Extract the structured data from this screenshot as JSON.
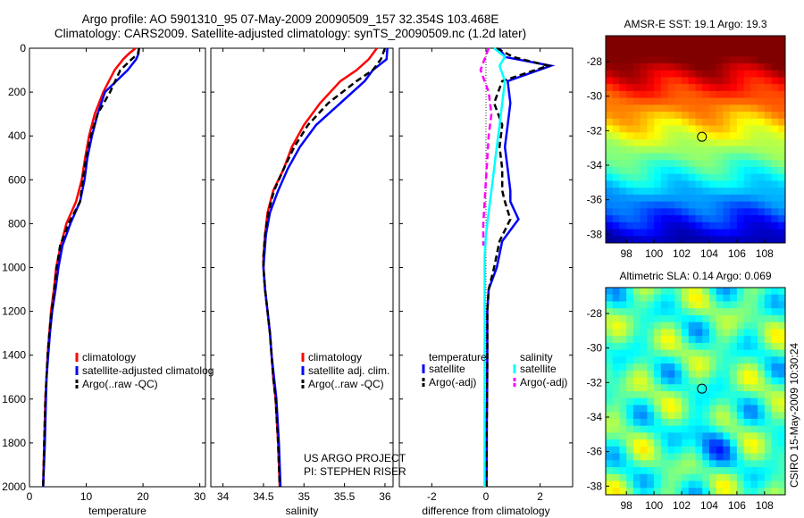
{
  "titles": {
    "line1": "Argo profile: AO 5901310_95 07-May-2009 20090509_157 32.354S 103.468E",
    "line2": "Climatology: CARS2009. Satellite-adjusted climatology: synTS_20090509.nc (1.2d later)"
  },
  "colors": {
    "climatology": "#ff0000",
    "satellite": "#0000ff",
    "argo": "#000000",
    "sal_satellite": "#00ffff",
    "sal_argo": "#ff00ff"
  },
  "depth_axis": {
    "ylim": [
      0,
      2000
    ],
    "ticks": [
      "0",
      "200",
      "400",
      "600",
      "800",
      "1000",
      "1200",
      "1400",
      "1600",
      "1800",
      "2000"
    ]
  },
  "chart_data": [
    {
      "type": "line",
      "xlabel": "temperature",
      "xlim": [
        0,
        31
      ],
      "xticks": [
        "0",
        "10",
        "20",
        "30"
      ],
      "y_reversed": true,
      "legend": [
        "climatology",
        "satellite-adjusted climatolog",
        "Argo(..raw -QC)"
      ],
      "series": [
        {
          "name": "climatology",
          "color": "#ff0000",
          "x": [
            18.7,
            17.5,
            16.5,
            15.0,
            13.0,
            11.5,
            10.5,
            9.8,
            9.2,
            8.2,
            6.5,
            5.5,
            4.7,
            4.3,
            3.8,
            3.5,
            3.2,
            3.0,
            2.8,
            2.6,
            2.4
          ],
          "y": [
            0,
            25,
            50,
            100,
            200,
            300,
            400,
            500,
            600,
            700,
            800,
            900,
            1000,
            1100,
            1200,
            1300,
            1400,
            1500,
            1600,
            1800,
            2000
          ]
        },
        {
          "name": "satellite-adjusted climatolog",
          "color": "#0000ff",
          "x": [
            19.3,
            19.2,
            18.8,
            17.3,
            13.3,
            12.0,
            11.0,
            10.2,
            9.7,
            8.9,
            7.2,
            5.8,
            5.1,
            4.6,
            4.0,
            3.6,
            3.3,
            3.0,
            2.9,
            2.7,
            2.4
          ],
          "y": [
            0,
            25,
            50,
            100,
            200,
            300,
            400,
            500,
            600,
            700,
            800,
            900,
            1000,
            1100,
            1200,
            1300,
            1400,
            1500,
            1600,
            1800,
            2000
          ]
        },
        {
          "name": "Argo(..raw -QC)",
          "color": "#000000",
          "x": [
            19.3,
            19.1,
            18.0,
            16.0,
            14.2,
            12.0,
            10.8,
            10.0,
            9.4,
            8.9,
            6.9,
            5.4,
            4.8,
            4.4,
            3.9,
            3.5,
            3.2,
            3.0,
            2.8,
            2.6,
            2.4
          ],
          "y": [
            0,
            25,
            50,
            100,
            200,
            300,
            400,
            500,
            600,
            700,
            800,
            900,
            1000,
            1100,
            1200,
            1300,
            1400,
            1500,
            1600,
            1800,
            2000
          ]
        }
      ]
    },
    {
      "type": "line",
      "xlabel": "salinity",
      "xlim": [
        33.85,
        36.1
      ],
      "xticks": [
        "34",
        "34.5",
        "35",
        "35.5",
        "36"
      ],
      "y_reversed": true,
      "legend": [
        "climatology",
        "satellite adj. clim.",
        "Argo(..raw -QC)"
      ],
      "annotation": [
        "US ARGO PROJECT",
        "PI: STEPHEN RISER"
      ],
      "series": [
        {
          "name": "climatology",
          "color": "#ff0000",
          "x": [
            35.9,
            35.8,
            35.65,
            35.45,
            35.2,
            35.0,
            34.85,
            34.75,
            34.62,
            34.55,
            34.52,
            34.5,
            34.5,
            34.52,
            34.55,
            34.58,
            34.6,
            34.62,
            34.65,
            34.68,
            34.7
          ],
          "y": [
            0,
            50,
            100,
            150,
            250,
            350,
            450,
            550,
            650,
            750,
            850,
            950,
            1000,
            1100,
            1200,
            1300,
            1400,
            1500,
            1600,
            1800,
            2000
          ]
        },
        {
          "name": "satellite adj. clim.",
          "color": "#0000ff",
          "x": [
            36.03,
            36.02,
            35.85,
            35.75,
            35.45,
            35.15,
            34.95,
            34.8,
            34.68,
            34.58,
            34.53,
            34.51,
            34.5,
            34.52,
            34.55,
            34.58,
            34.6,
            34.63,
            34.66,
            34.69,
            34.71
          ],
          "y": [
            0,
            50,
            100,
            150,
            250,
            350,
            450,
            550,
            650,
            750,
            850,
            950,
            1000,
            1100,
            1200,
            1300,
            1400,
            1500,
            1600,
            1800,
            2000
          ]
        },
        {
          "name": "Argo(..raw -QC)",
          "color": "#000000",
          "x": [
            36.0,
            35.95,
            35.85,
            35.65,
            35.3,
            35.05,
            34.88,
            34.75,
            34.63,
            34.56,
            34.52,
            34.5,
            34.5,
            34.52,
            34.55,
            34.58,
            34.6,
            34.62,
            34.65,
            34.68,
            34.7
          ],
          "y": [
            0,
            50,
            100,
            150,
            250,
            350,
            450,
            550,
            650,
            750,
            850,
            950,
            1000,
            1100,
            1200,
            1300,
            1400,
            1500,
            1600,
            1800,
            2000
          ]
        }
      ]
    },
    {
      "type": "line",
      "xlabel": "difference from climatology",
      "xlim": [
        -3.2,
        3.2
      ],
      "xticks": [
        "-2",
        "0",
        "2"
      ],
      "y_reversed": true,
      "legend": {
        "temperature": [
          "satellite",
          "Argo(-adj)"
        ],
        "salinity": [
          "satellite",
          "Argo(-adj)"
        ]
      },
      "series": [
        {
          "name": "temperature satellite",
          "color": "#0000ff",
          "x": [
            0.5,
            0.7,
            2.4,
            0.8,
            0.9,
            0.8,
            0.7,
            0.8,
            0.9,
            0.9,
            1.2,
            0.6,
            0.4,
            0.1,
            0.05,
            0.05,
            0.04,
            0.03,
            0.03,
            0.02
          ],
          "y": [
            0,
            40,
            80,
            150,
            250,
            350,
            450,
            550,
            650,
            700,
            780,
            880,
            1000,
            1100,
            1200,
            1400,
            1600,
            1700,
            1800,
            2000
          ]
        },
        {
          "name": "temperature Argo(-adj)",
          "color": "#000000",
          "x": [
            0.4,
            1.0,
            2.3,
            0.6,
            0.3,
            0.6,
            0.5,
            0.6,
            0.6,
            0.7,
            0.9,
            0.5,
            0.3,
            0.1,
            0.05,
            0.05,
            0.04,
            0.03,
            0.02,
            0.02
          ],
          "y": [
            0,
            40,
            80,
            150,
            250,
            350,
            450,
            550,
            650,
            700,
            780,
            880,
            1000,
            1100,
            1200,
            1400,
            1600,
            1700,
            1800,
            2000
          ]
        },
        {
          "name": "salinity satellite",
          "color": "#00ffff",
          "x": [
            0.3,
            0.7,
            0.5,
            0.7,
            0.6,
            0.5,
            0.4,
            0.3,
            0.2,
            0.1,
            0.0,
            -0.05,
            -0.05,
            -0.05,
            -0.05,
            -0.05,
            -0.05,
            -0.05,
            -0.05
          ],
          "y": [
            0,
            40,
            80,
            150,
            250,
            350,
            450,
            550,
            650,
            750,
            850,
            950,
            1050,
            1200,
            1400,
            1600,
            1700,
            1800,
            2000
          ]
        },
        {
          "name": "salinity Argo(-adj)",
          "color": "#ff00ff",
          "x": [
            0.1,
            -0.2,
            -0.05,
            0.1,
            0.2,
            0.1,
            0.05,
            0.0,
            -0.05,
            -0.1,
            -0.1
          ],
          "y": [
            0,
            100,
            150,
            200,
            300,
            400,
            500,
            600,
            700,
            800,
            900
          ]
        }
      ]
    },
    {
      "type": "heatmap",
      "title": "AMSR-E SST: 19.1 Argo: 19.3",
      "xlim": [
        96.5,
        109.5
      ],
      "ylim": [
        -38.5,
        -26.5
      ],
      "xticks": [
        "98",
        "100",
        "102",
        "104",
        "106",
        "108"
      ],
      "yticks": [
        "-28",
        "-30",
        "-32",
        "-34",
        "-36",
        "-38"
      ],
      "marker": {
        "lon": 103.468,
        "lat": -32.354
      }
    },
    {
      "type": "heatmap",
      "title": "Altimetric SLA: 0.14 Argo: 0.069",
      "xlim": [
        96.5,
        109.5
      ],
      "ylim": [
        -38.5,
        -26.5
      ],
      "xticks": [
        "98",
        "100",
        "102",
        "104",
        "106",
        "108"
      ],
      "yticks": [
        "-28",
        "-30",
        "-32",
        "-34",
        "-36",
        "-38"
      ],
      "marker": {
        "lon": 103.468,
        "lat": -32.354
      }
    }
  ],
  "side_label": "CSIRO 15-May-2009 10:30:24"
}
